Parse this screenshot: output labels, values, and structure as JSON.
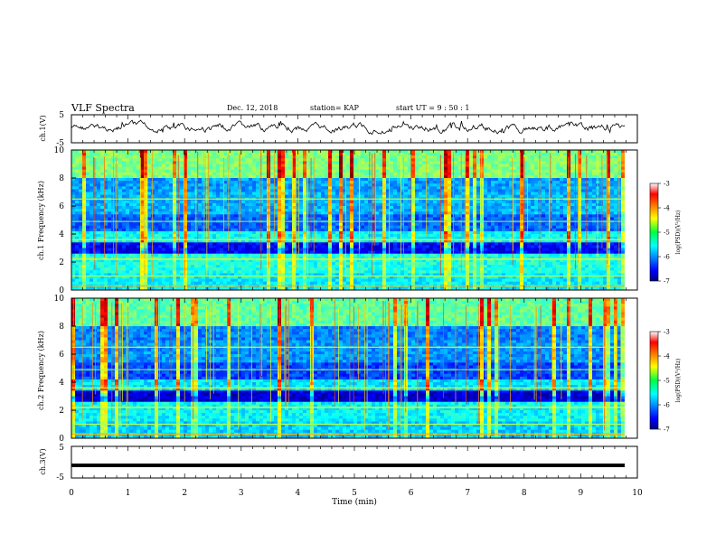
{
  "header": {
    "title": "VLF Spectra",
    "date": "Dec. 12, 2018",
    "station": "station= KAP",
    "start": "start UT =  9 : 50 : 1"
  },
  "chart_data": [
    {
      "type": "line",
      "name": "ch1-waveform",
      "ylabel": "ch.1(V)",
      "ylim": [
        -5,
        5
      ],
      "yticks": [
        "5",
        "-5"
      ],
      "xlim": [
        0,
        10
      ]
    },
    {
      "type": "heatmap",
      "name": "ch1-spectrogram",
      "ylabel": "ch.1 Frequency (kHz)",
      "ylim": [
        0,
        10
      ],
      "yticks": [
        "10",
        "8",
        "6",
        "4",
        "2",
        "0"
      ],
      "xlim": [
        0,
        10
      ],
      "colorbar": {
        "label": "log(PSD)(V²/Hz)",
        "range": [
          -7,
          -3
        ],
        "ticks": [
          "-3",
          "-4",
          "-5",
          "-6",
          "-7"
        ],
        "colormap": "jet"
      }
    },
    {
      "type": "heatmap",
      "name": "ch2-spectrogram",
      "ylabel": "ch.2 Frequency (kHz)",
      "ylim": [
        0,
        10
      ],
      "yticks": [
        "10",
        "8",
        "6",
        "4",
        "2",
        "0"
      ],
      "xlim": [
        0,
        10
      ],
      "colorbar": {
        "label": "log(PSD)(V²/Hz)",
        "range": [
          -7,
          -3
        ],
        "ticks": [
          "-3",
          "-4",
          "-5",
          "-6",
          "-7"
        ],
        "colormap": "jet"
      }
    },
    {
      "type": "line",
      "name": "ch3-waveform",
      "ylabel": "ch.3(V)",
      "ylim": [
        -5,
        5
      ],
      "yticks": [
        "5",
        "-5"
      ],
      "xlim": [
        0,
        10
      ],
      "values": [
        -1,
        -1
      ]
    }
  ],
  "xaxis": {
    "label": "Time  (min)",
    "ticks": [
      "0",
      "1",
      "2",
      "3",
      "4",
      "5",
      "6",
      "7",
      "8",
      "9",
      "10"
    ]
  }
}
